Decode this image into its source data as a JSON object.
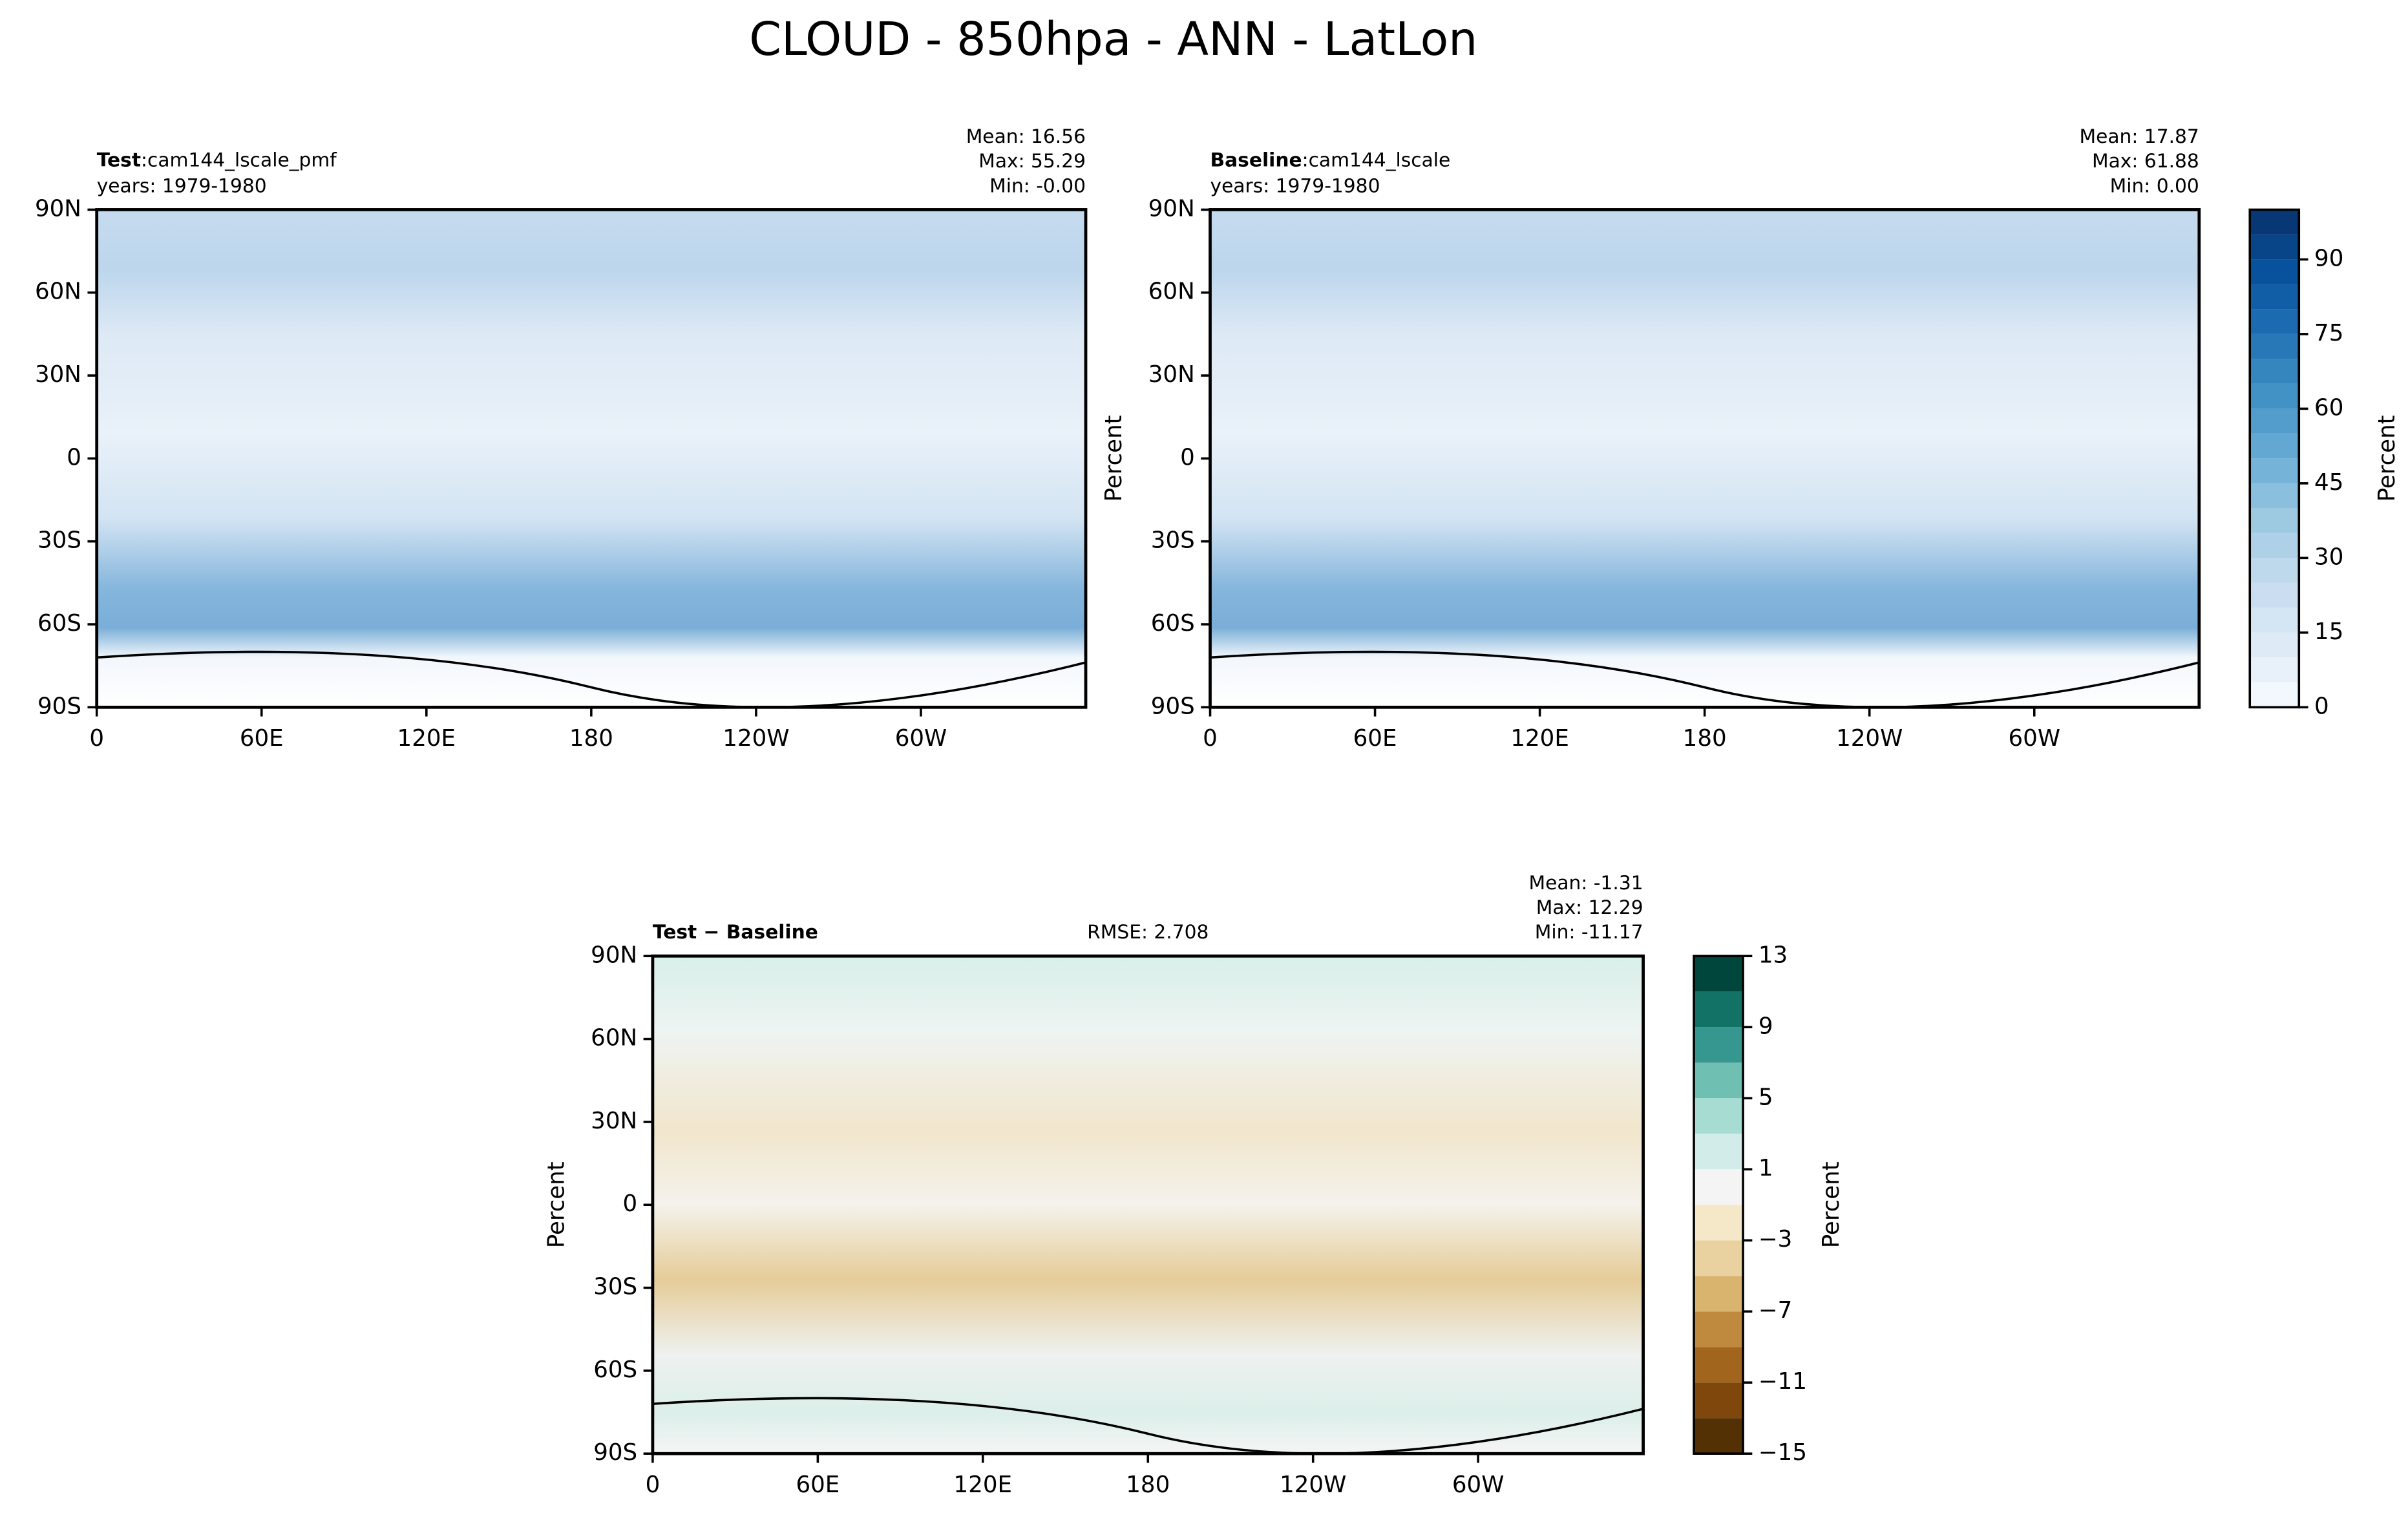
{
  "title": "CLOUD - 850hpa - ANN - LatLon",
  "chart_data": [
    {
      "type": "map",
      "title_bold": "Test",
      "title": ":cam144_lscale_pmf",
      "subtitle": "years: 1979-1980",
      "stats": [
        "Mean: 16.56",
        "Max: 55.29",
        "Min: -0.00"
      ],
      "xlim": [
        0,
        360
      ],
      "ylim": [
        -90,
        90
      ],
      "xticks": [
        0,
        {
          "value": 60,
          "label": "60E"
        },
        {
          "value": 120,
          "label": "120E"
        },
        180,
        {
          "value": 240,
          "label": "120W"
        },
        {
          "value": 300,
          "label": "60W"
        }
      ],
      "yticks": [
        {
          "value": 90,
          "label": "90N"
        },
        {
          "value": 60,
          "label": "60N"
        },
        {
          "value": 30,
          "label": "30N"
        },
        0,
        {
          "value": -30,
          "label": "30S"
        },
        {
          "value": -60,
          "label": "60S"
        },
        {
          "value": -90,
          "label": "90S"
        }
      ],
      "field": "blues"
    },
    {
      "type": "map",
      "title_bold": "Baseline",
      "title": ":cam144_lscale",
      "subtitle": "years: 1979-1980",
      "stats": [
        "Mean: 17.87",
        "Max: 61.88",
        "Min:  0.00"
      ],
      "ylabel": "Percent",
      "xlim": [
        0,
        360
      ],
      "ylim": [
        -90,
        90
      ],
      "xticks": [
        0,
        {
          "value": 60,
          "label": "60E"
        },
        {
          "value": 120,
          "label": "120E"
        },
        180,
        {
          "value": 240,
          "label": "120W"
        },
        {
          "value": 300,
          "label": "60W"
        }
      ],
      "yticks": [
        {
          "value": 90,
          "label": "90N"
        },
        {
          "value": 60,
          "label": "60N"
        },
        {
          "value": 30,
          "label": "30N"
        },
        0,
        {
          "value": -30,
          "label": "30S"
        },
        {
          "value": -60,
          "label": "60S"
        },
        {
          "value": -90,
          "label": "90S"
        }
      ],
      "field": "blues",
      "colorbar": {
        "label": "Percent",
        "clim": [
          0,
          100
        ],
        "levels": [
          0,
          5,
          10,
          15,
          20,
          25,
          30,
          35,
          40,
          45,
          50,
          55,
          60,
          65,
          70,
          75,
          80,
          85,
          90,
          95,
          100
        ],
        "colors": [
          "#f7fbff",
          "#deebf7",
          "#c6dbef",
          "#9ecae1",
          "#6baed6",
          "#4292c6",
          "#2171b5",
          "#08519c",
          "#08306b"
        ],
        "ticks": [
          0,
          15,
          30,
          45,
          60,
          75,
          90
        ]
      }
    },
    {
      "type": "map",
      "title_bold": "Test − Baseline",
      "rmse": "RMSE: 2.708",
      "stats": [
        "Mean: -1.31",
        "Max: 12.29",
        "Min: -11.17"
      ],
      "ylabel": "Percent",
      "xlim": [
        0,
        360
      ],
      "ylim": [
        -90,
        90
      ],
      "xticks": [
        0,
        {
          "value": 60,
          "label": "60E"
        },
        {
          "value": 120,
          "label": "120E"
        },
        180,
        {
          "value": 240,
          "label": "120W"
        },
        {
          "value": 300,
          "label": "60W"
        }
      ],
      "yticks": [
        {
          "value": 90,
          "label": "90N"
        },
        {
          "value": 60,
          "label": "60N"
        },
        {
          "value": 30,
          "label": "30N"
        },
        0,
        {
          "value": -30,
          "label": "30S"
        },
        {
          "value": -60,
          "label": "60S"
        },
        {
          "value": -90,
          "label": "90S"
        }
      ],
      "field": "diff",
      "colorbar": {
        "label": "Percent",
        "clim": [
          -15,
          13
        ],
        "levels": [
          -15,
          -13,
          -11,
          -9,
          -7,
          -5,
          -3,
          -1,
          1,
          3,
          5,
          7,
          9,
          11,
          13
        ],
        "colors": [
          "#543005",
          "#7f470b",
          "#a2651d",
          "#c08a3e",
          "#d8b46e",
          "#e9d29f",
          "#f5e8c8",
          "#f4f4f4",
          "#d2ede9",
          "#a7dcd2",
          "#6fc0b2",
          "#35978f",
          "#117265",
          "#00463c"
        ],
        "ticks": [
          {
            "value": -15,
            "label": "−15"
          },
          {
            "value": -11,
            "label": "−11"
          },
          {
            "value": -7,
            "label": "−7"
          },
          {
            "value": -3,
            "label": "−3"
          },
          1,
          5,
          9,
          13
        ]
      }
    }
  ]
}
